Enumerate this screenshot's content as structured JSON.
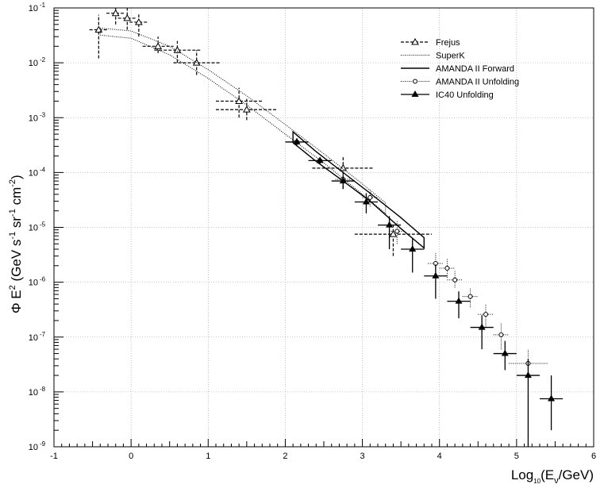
{
  "chart_data": {
    "type": "scatter",
    "xlim": [
      -1,
      6
    ],
    "ylim_log10": [
      -9,
      -1
    ],
    "log_y": true,
    "grid": true,
    "legend_position": "top-right",
    "x_ticks": [
      "-1",
      "0",
      "1",
      "2",
      "3",
      "4",
      "5",
      "6"
    ],
    "y_ticks": [
      "10",
      "10",
      "10",
      "10",
      "10",
      "10",
      "10",
      "10",
      "10"
    ],
    "y_tick_exponents": [
      "-9",
      "-8",
      "-7",
      "-6",
      "-5",
      "-4",
      "-3",
      "-2",
      "-1"
    ],
    "xlabel": {
      "main": "Log",
      "sub1": "10",
      "mid": "(E",
      "sub2": "ν",
      "end": "/GeV)"
    },
    "ylabel": {
      "p1": "Φ  E",
      "s1": "2",
      "p2": " (GeV s",
      "s2": "-1",
      "p3": " sr",
      "s3": "-1",
      "p4": " cm",
      "s4": "-2",
      "p5": ")"
    },
    "legend": [
      {
        "label": "Frejus",
        "style": "dashed",
        "marker": "open-triangle"
      },
      {
        "label": "SuperK",
        "style": "dotted",
        "marker": "none"
      },
      {
        "label": "AMANDA II Forward",
        "style": "solid",
        "marker": "none"
      },
      {
        "label": "AMANDA II Unfolding",
        "style": "dotted",
        "marker": "open-circle"
      },
      {
        "label": "IC40 Unfolding",
        "style": "solid",
        "marker": "filled-triangle"
      }
    ],
    "series": [
      {
        "name": "Frejus",
        "points": [
          {
            "x": -0.42,
            "y": 0.04,
            "xerr": 0.12,
            "ylo": 0.012,
            "yhi": 0.075
          },
          {
            "x": -0.2,
            "y": 0.08,
            "xerr": 0.12,
            "ylo": 0.05,
            "yhi": 0.1
          },
          {
            "x": -0.05,
            "y": 0.065,
            "xerr": 0.12,
            "ylo": 0.04,
            "yhi": 0.1
          },
          {
            "x": 0.1,
            "y": 0.055,
            "xerr": 0.12,
            "ylo": 0.03,
            "yhi": 0.08
          },
          {
            "x": 0.35,
            "y": 0.02,
            "xerr": 0.2,
            "ylo": 0.015,
            "yhi": 0.03
          },
          {
            "x": 0.6,
            "y": 0.017,
            "xerr": 0.3,
            "ylo": 0.01,
            "yhi": 0.025
          },
          {
            "x": 0.85,
            "y": 0.01,
            "xerr": 0.3,
            "ylo": 0.006,
            "yhi": 0.017
          },
          {
            "x": 1.4,
            "y": 0.002,
            "xerr": 0.3,
            "ylo": 0.001,
            "yhi": 0.0035
          },
          {
            "x": 1.5,
            "y": 0.0014,
            "xerr": 0.4,
            "ylo": 0.0009,
            "yhi": 0.0022
          },
          {
            "x": 2.75,
            "y": 0.00012,
            "xerr": 0.4,
            "ylo": 5e-05,
            "yhi": 0.0002
          },
          {
            "x": 3.4,
            "y": 7.5e-06,
            "xerr": 0.5,
            "ylo": 3e-06,
            "yhi": 1.1e-05
          }
        ]
      },
      {
        "name": "SuperK",
        "band": {
          "x": [
            -0.4,
            0,
            0.5,
            1,
            1.5,
            2,
            2.5,
            3,
            3.3
          ],
          "upper": [
            0.043,
            0.038,
            0.02,
            0.0075,
            0.0025,
            0.00075,
            0.00022,
            6.2e-05,
            2.8e-05
          ],
          "lower": [
            0.032,
            0.028,
            0.014,
            0.0052,
            0.0017,
            0.0005,
            0.00015,
            4e-05,
            1.8e-05
          ]
        }
      },
      {
        "name": "AMANDA II Forward",
        "band": {
          "x": [
            2.1,
            2.4,
            2.75,
            3.1,
            3.5,
            3.8
          ],
          "upper": [
            0.00055,
            0.00024,
            0.0001,
            4.2e-05,
            1.5e-05,
            6.5e-06
          ],
          "lower": [
            0.00035,
            0.00016,
            7e-05,
            3e-05,
            9.5e-06,
            4.2e-06
          ]
        }
      },
      {
        "name": "AMANDA II Unfolding",
        "points": [
          {
            "x": 2.15,
            "y": 0.00036,
            "xerr": 0.1,
            "ylo": 0.00031,
            "yhi": 0.00042
          },
          {
            "x": 2.45,
            "y": 0.000165,
            "xerr": 0.1,
            "ylo": 0.00014,
            "yhi": 0.00019
          },
          {
            "x": 2.75,
            "y": 7.5e-05,
            "xerr": 0.1,
            "ylo": 5.5e-05,
            "yhi": 0.0001
          },
          {
            "x": 3.1,
            "y": 3.5e-05,
            "xerr": 0.1,
            "ylo": 2.4e-05,
            "yhi": 4.8e-05
          },
          {
            "x": 3.45,
            "y": 8.5e-06,
            "xerr": 0.1,
            "ylo": 5e-06,
            "yhi": 1.3e-05
          },
          {
            "x": 3.95,
            "y": 2.2e-06,
            "xerr": 0.1,
            "ylo": 1.3e-06,
            "yhi": 3.5e-06
          },
          {
            "x": 4.1,
            "y": 1.8e-06,
            "xerr": 0.1,
            "ylo": 1.2e-06,
            "yhi": 2.7e-06
          },
          {
            "x": 4.2,
            "y": 1.1e-06,
            "xerr": 0.1,
            "ylo": 8e-07,
            "yhi": 1.6e-06
          },
          {
            "x": 4.4,
            "y": 5.5e-07,
            "xerr": 0.1,
            "ylo": 3.5e-07,
            "yhi": 8e-07
          },
          {
            "x": 4.6,
            "y": 2.6e-07,
            "xerr": 0.1,
            "ylo": 1.5e-07,
            "yhi": 4e-07
          },
          {
            "x": 4.8,
            "y": 1.1e-07,
            "xerr": 0.1,
            "ylo": 6e-08,
            "yhi": 1.8e-07
          },
          {
            "x": 5.15,
            "y": 3.3e-08,
            "xerr": 0.25,
            "ylo": 1e-09,
            "yhi": 6e-08
          }
        ]
      },
      {
        "name": "IC40 Unfolding",
        "points": [
          {
            "x": 2.15,
            "y": 0.00036,
            "xerr": 0.15,
            "ylo": 0.00031,
            "yhi": 0.00042
          },
          {
            "x": 2.45,
            "y": 0.000165,
            "xerr": 0.15,
            "ylo": 0.000145,
            "yhi": 0.00019
          },
          {
            "x": 2.75,
            "y": 7e-05,
            "xerr": 0.15,
            "ylo": 5e-05,
            "yhi": 9e-05
          },
          {
            "x": 3.05,
            "y": 2.9e-05,
            "xerr": 0.15,
            "ylo": 1.8e-05,
            "yhi": 4.2e-05
          },
          {
            "x": 3.35,
            "y": 1.1e-05,
            "xerr": 0.15,
            "ylo": 4e-06,
            "yhi": 1.6e-05
          },
          {
            "x": 3.65,
            "y": 4e-06,
            "xerr": 0.15,
            "ylo": 1.5e-06,
            "yhi": 6.5e-06
          },
          {
            "x": 3.95,
            "y": 1.3e-06,
            "xerr": 0.15,
            "ylo": 5e-07,
            "yhi": 2.1e-06
          },
          {
            "x": 4.25,
            "y": 4.5e-07,
            "xerr": 0.15,
            "ylo": 2.2e-07,
            "yhi": 6.8e-07
          },
          {
            "x": 4.55,
            "y": 1.5e-07,
            "xerr": 0.15,
            "ylo": 6e-08,
            "yhi": 2.5e-07
          },
          {
            "x": 4.85,
            "y": 5e-08,
            "xerr": 0.15,
            "ylo": 2.5e-08,
            "yhi": 8.5e-08
          },
          {
            "x": 5.15,
            "y": 2e-08,
            "xerr": 0.15,
            "ylo": 1e-09,
            "yhi": 4e-08
          },
          {
            "x": 5.45,
            "y": 7.5e-09,
            "xerr": 0.15,
            "ylo": 2e-09,
            "yhi": 2e-08
          }
        ]
      }
    ]
  }
}
